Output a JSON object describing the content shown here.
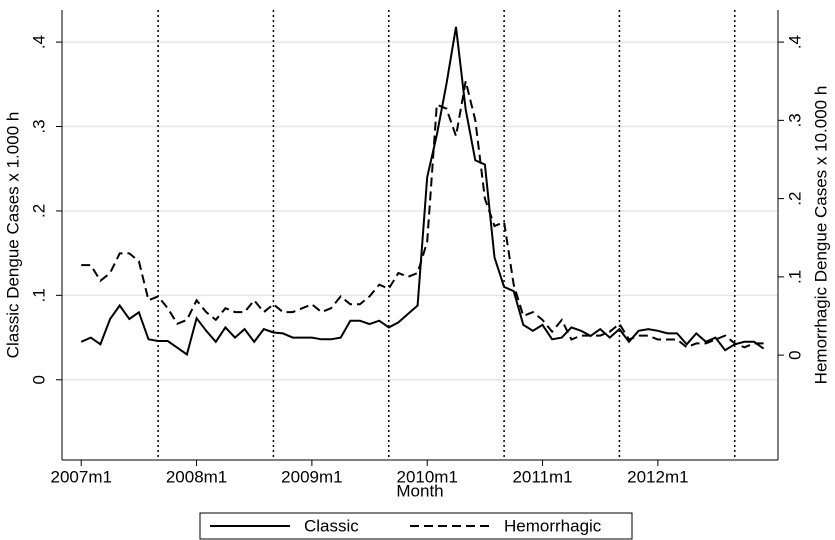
{
  "chart_data": {
    "type": "line",
    "x_label": "Month",
    "y_label": "Classic Dengue Cases x 1.000 h",
    "y2_label": "Hemorrhagic Dengue Cases x 10.000 h",
    "categories": [
      "2007m1",
      "2007m2",
      "2007m3",
      "2007m4",
      "2007m5",
      "2007m6",
      "2007m7",
      "2007m8",
      "2007m9",
      "2007m10",
      "2007m11",
      "2007m12",
      "2008m1",
      "2008m2",
      "2008m3",
      "2008m4",
      "2008m5",
      "2008m6",
      "2008m7",
      "2008m8",
      "2008m9",
      "2008m10",
      "2008m11",
      "2008m12",
      "2009m1",
      "2009m2",
      "2009m3",
      "2009m4",
      "2009m5",
      "2009m6",
      "2009m7",
      "2009m8",
      "2009m9",
      "2009m10",
      "2009m11",
      "2009m12",
      "2010m1",
      "2010m2",
      "2010m3",
      "2010m4",
      "2010m5",
      "2010m6",
      "2010m7",
      "2010m8",
      "2010m9",
      "2010m10",
      "2010m11",
      "2010m12",
      "2011m1",
      "2011m2",
      "2011m3",
      "2011m4",
      "2011m5",
      "2011m6",
      "2011m7",
      "2011m8",
      "2011m9",
      "2011m10",
      "2011m11",
      "2011m12",
      "2012m1",
      "2012m2",
      "2012m3",
      "2012m4",
      "2012m5",
      "2012m6",
      "2012m7",
      "2012m8",
      "2012m9",
      "2012m10",
      "2012m11",
      "2012m12"
    ],
    "xtick_indices": [
      0,
      12,
      24,
      36,
      48,
      60
    ],
    "vlines": [
      8,
      20,
      32,
      44,
      56,
      68
    ],
    "xlim": [
      -2,
      72.5
    ],
    "series": [
      {
        "name": "Classic",
        "color": "#000000",
        "dash": "solid",
        "axis": "y",
        "values": [
          0.045,
          0.05,
          0.042,
          0.072,
          0.088,
          0.072,
          0.08,
          0.048,
          0.046,
          0.046,
          0.038,
          0.03,
          0.073,
          0.058,
          0.045,
          0.062,
          0.05,
          0.06,
          0.045,
          0.06,
          0.056,
          0.055,
          0.05,
          0.05,
          0.05,
          0.048,
          0.048,
          0.05,
          0.07,
          0.07,
          0.066,
          0.07,
          0.062,
          0.068,
          0.078,
          0.088,
          0.24,
          0.29,
          0.35,
          0.418,
          0.32,
          0.26,
          0.255,
          0.145,
          0.11,
          0.105,
          0.065,
          0.058,
          0.065,
          0.048,
          0.05,
          0.062,
          0.058,
          0.052,
          0.06,
          0.05,
          0.06,
          0.045,
          0.058,
          0.06,
          0.058,
          0.055,
          0.055,
          0.042,
          0.055,
          0.045,
          0.05,
          0.035,
          0.042,
          0.045,
          0.045,
          0.037
        ]
      },
      {
        "name": "Hemorrhagic",
        "color": "#000000",
        "dash": "dashed",
        "axis": "y2",
        "values": [
          0.115,
          0.115,
          0.095,
          0.105,
          0.13,
          0.13,
          0.12,
          0.07,
          0.075,
          0.06,
          0.04,
          0.045,
          0.07,
          0.055,
          0.045,
          0.06,
          0.055,
          0.055,
          0.07,
          0.055,
          0.065,
          0.055,
          0.055,
          0.06,
          0.065,
          0.055,
          0.06,
          0.075,
          0.065,
          0.065,
          0.075,
          0.09,
          0.085,
          0.105,
          0.1,
          0.105,
          0.145,
          0.32,
          0.315,
          0.28,
          0.35,
          0.3,
          0.2,
          0.165,
          0.17,
          0.09,
          0.05,
          0.055,
          0.045,
          0.03,
          0.045,
          0.02,
          0.025,
          0.025,
          0.025,
          0.03,
          0.04,
          0.02,
          0.025,
          0.025,
          0.02,
          0.02,
          0.02,
          0.01,
          0.015,
          0.015,
          0.02,
          0.025,
          0.015,
          0.01,
          0.015,
          0.015
        ]
      }
    ],
    "ylim": [
      -0.095,
      0.438
    ],
    "yticks": [
      0,
      {
        "value": 0.1,
        "label": ".1"
      },
      {
        "value": 0.2,
        "label": ".2"
      },
      {
        "value": 0.3,
        "label": ".3"
      },
      {
        "value": 0.4,
        "label": ".4"
      }
    ],
    "y2lim": [
      -0.134,
      0.441
    ],
    "y2ticks": [
      0,
      {
        "value": 0.1,
        "label": ".1"
      },
      {
        "value": 0.2,
        "label": ".2"
      },
      {
        "value": 0.3,
        "label": ".3"
      },
      {
        "value": 0.4,
        "label": ".4"
      }
    ],
    "grid": true,
    "legend": "bottom"
  }
}
